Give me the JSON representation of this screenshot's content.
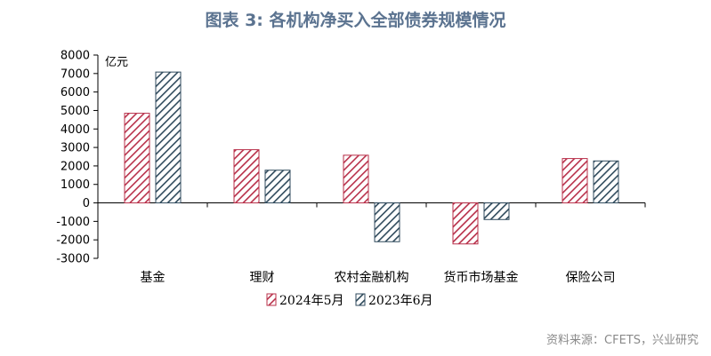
{
  "title": "图表 3:  各机构净买入全部债券规模情况",
  "source": "资料来源：CFETS，兴业研究",
  "chart_data": {
    "type": "bar",
    "title": "图表 3:  各机构净买入全部债券规模情况",
    "ylabel": "亿元",
    "xlabel": "",
    "ylim": [
      -3000,
      8000
    ],
    "yticks": [
      -3000,
      -2000,
      -1000,
      0,
      1000,
      2000,
      3000,
      4000,
      5000,
      6000,
      7000,
      8000
    ],
    "categories": [
      "基金",
      "理财",
      "农村金融机构",
      "货币市场基金",
      "保险公司"
    ],
    "series": [
      {
        "name": "2024年5月",
        "values": [
          4850,
          2880,
          2580,
          -2220,
          2400
        ],
        "color": "#b8304a"
      },
      {
        "name": "2023年6月",
        "values": [
          7080,
          1770,
          -2100,
          -900,
          2270
        ],
        "color": "#2f4a5c"
      }
    ],
    "legend_position": "bottom",
    "grid": false
  }
}
